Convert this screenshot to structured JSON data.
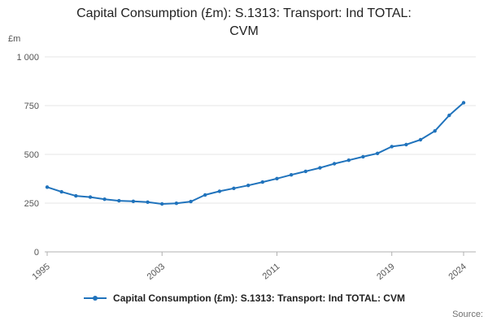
{
  "page": {
    "source_label": "Source:"
  },
  "chart_data": {
    "type": "line",
    "title": "Capital Consumption (£m): S.1313: Transport: Ind TOTAL: CVM",
    "unit_label": "£m",
    "x": [
      1995,
      1996,
      1997,
      1998,
      1999,
      2000,
      2001,
      2002,
      2003,
      2004,
      2005,
      2006,
      2007,
      2008,
      2009,
      2010,
      2011,
      2012,
      2013,
      2014,
      2015,
      2016,
      2017,
      2018,
      2019,
      2020,
      2021,
      2022,
      2023,
      2024
    ],
    "series": [
      {
        "name": "Capital Consumption (£m): S.1313: Transport: Ind TOTAL: CVM",
        "values": [
          332,
          308,
          287,
          281,
          270,
          262,
          259,
          255,
          246,
          249,
          258,
          292,
          311,
          326,
          341,
          358,
          376,
          395,
          413,
          431,
          452,
          470,
          488,
          505,
          540,
          550,
          575,
          620,
          700,
          765
        ]
      }
    ],
    "ylim": [
      0,
      1000
    ],
    "y_ticks": [
      {
        "value": 0,
        "label": "0"
      },
      {
        "value": 250,
        "label": "250"
      },
      {
        "value": 500,
        "label": "500"
      },
      {
        "value": 750,
        "label": "750"
      },
      {
        "value": 1000,
        "label": "1 000"
      }
    ],
    "x_tick_years": [
      1995,
      2003,
      2011,
      2019,
      2024
    ],
    "grid": true,
    "legend": {
      "position": "bottom",
      "label": "Capital Consumption (£m): S.1313: Transport: Ind TOTAL: CVM"
    },
    "colors": {
      "line": "#2073bc",
      "grid": "#e6e6e6",
      "axis": "#b0b0b0",
      "text": "#555555"
    }
  }
}
